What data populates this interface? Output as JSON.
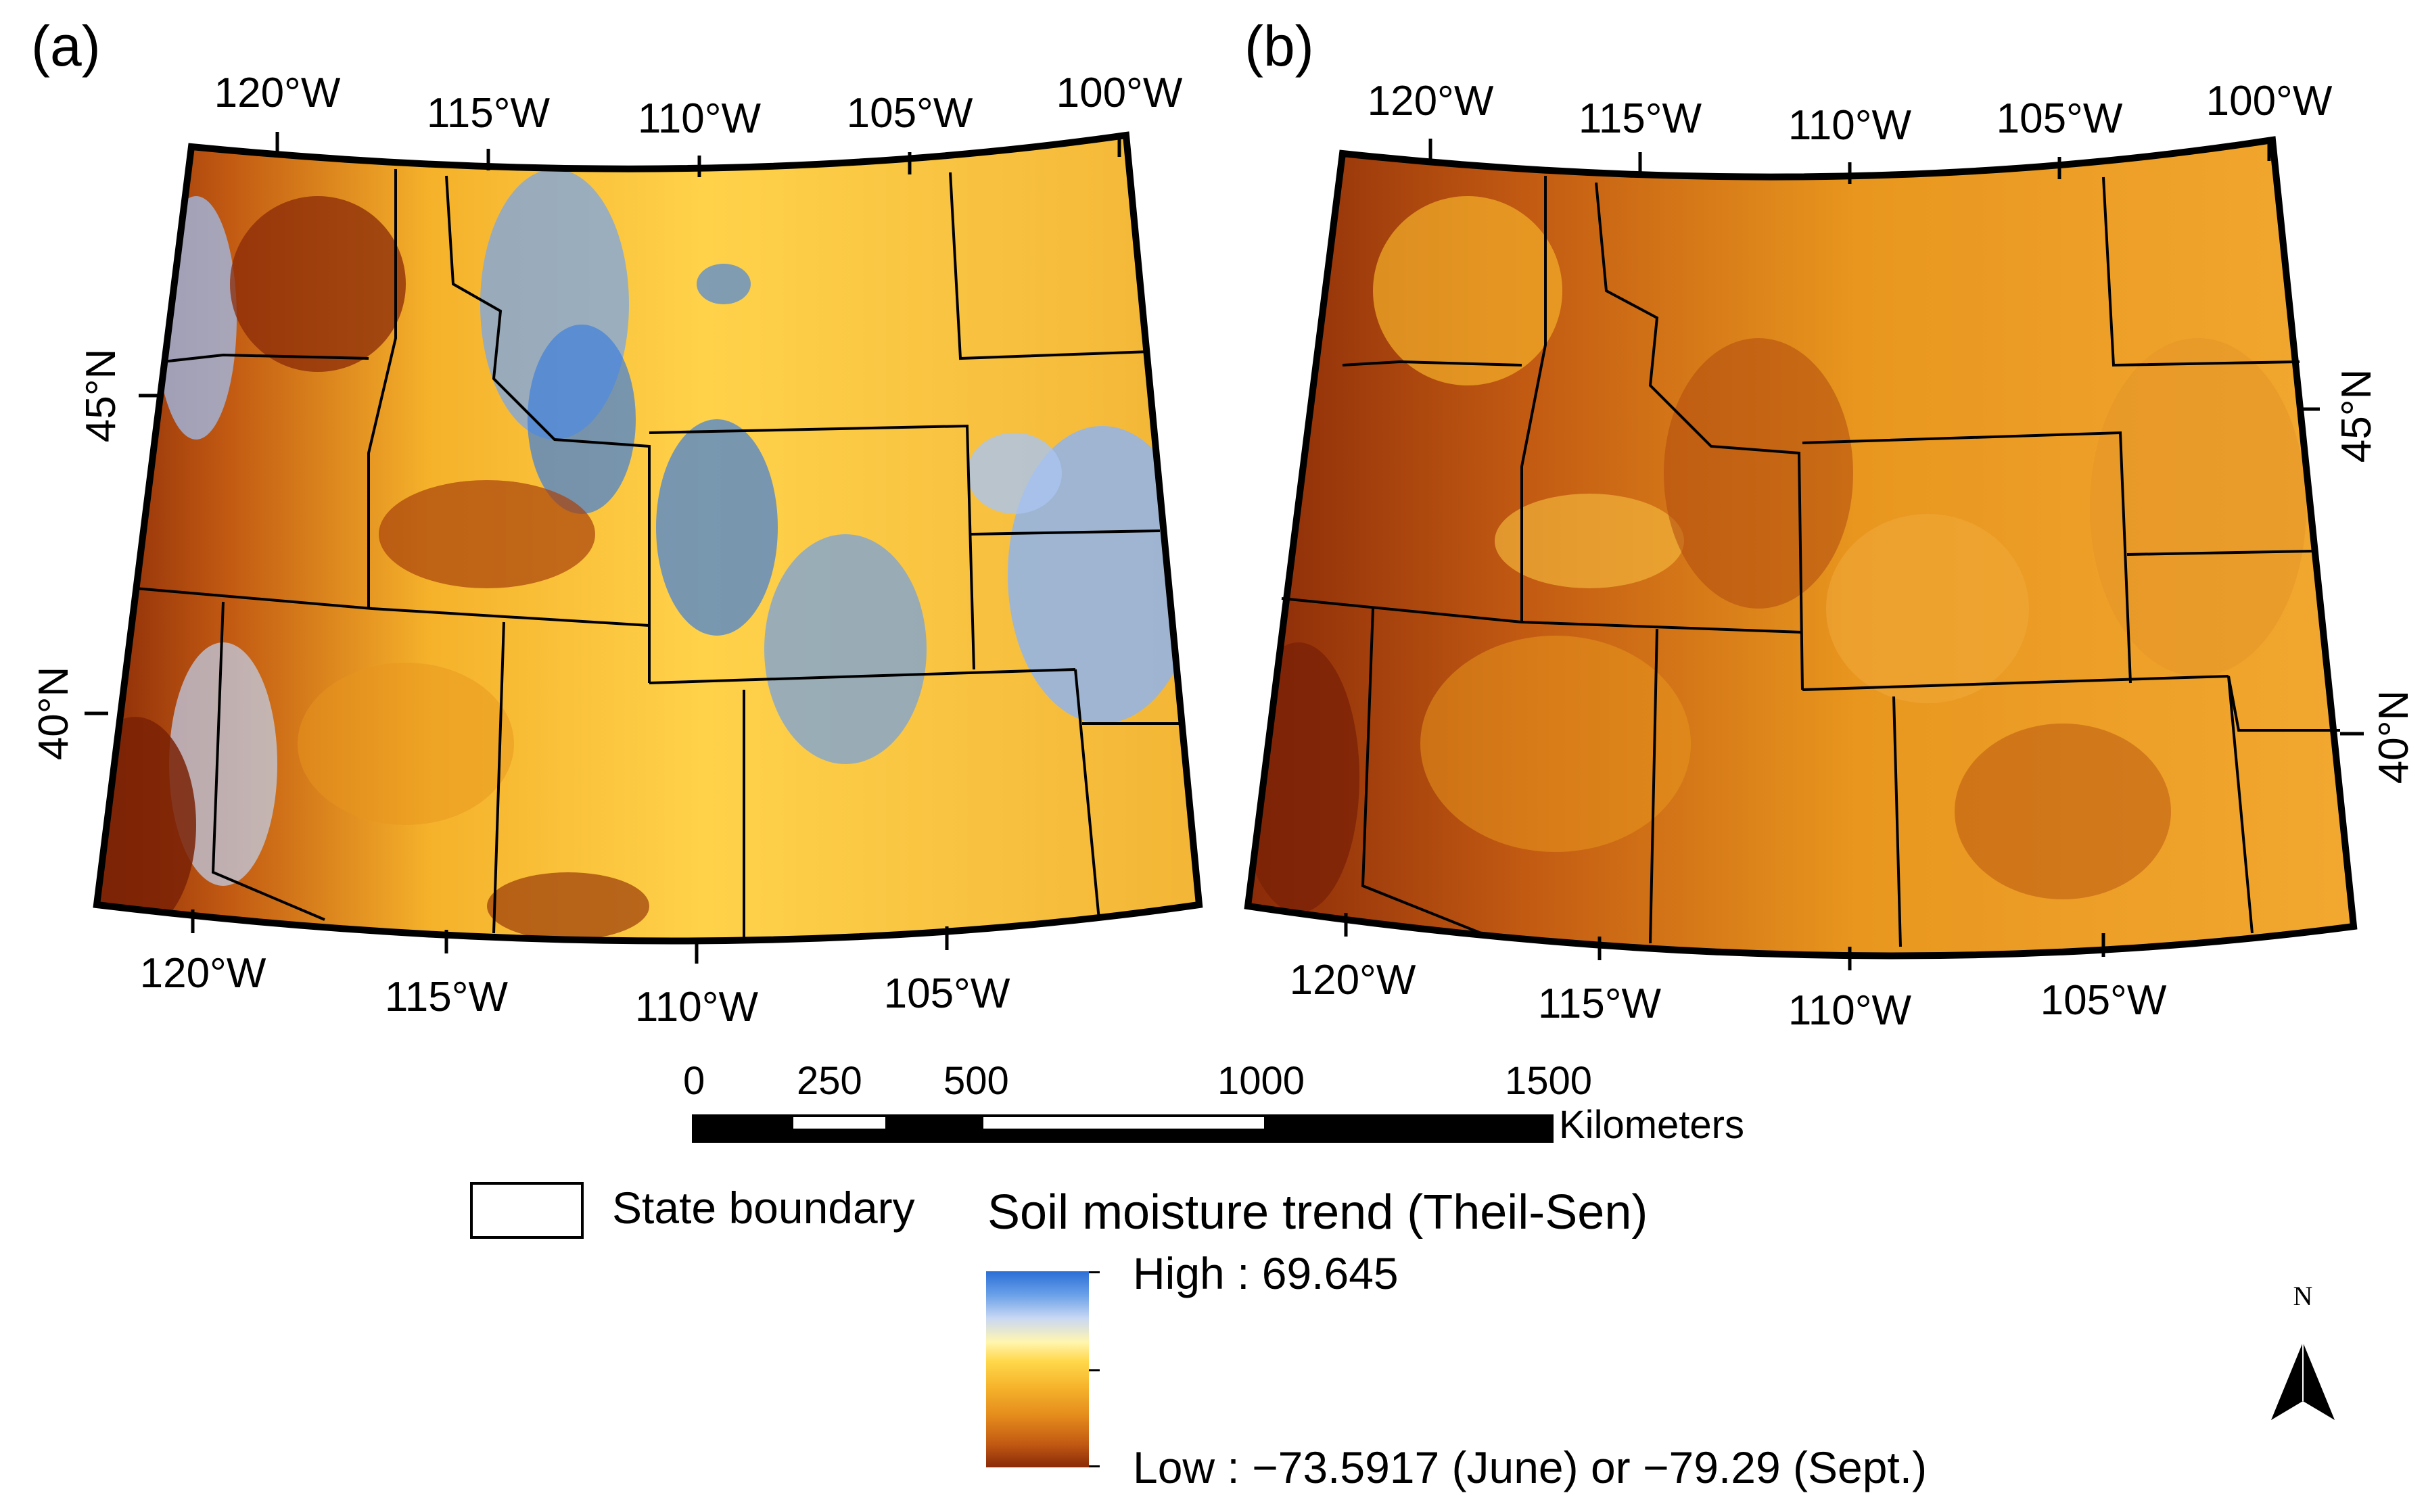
{
  "panels": [
    {
      "letter": "(a)",
      "top_labels": [
        "120°W",
        "115°W",
        "110°W",
        "105°W",
        "100°W"
      ],
      "bottom_labels": [
        "120°W",
        "115°W",
        "110°W",
        "105°W"
      ],
      "lat_labels": [
        "45°N",
        "40°N"
      ]
    },
    {
      "letter": "(b)",
      "top_labels": [
        "120°W",
        "115°W",
        "110°W",
        "105°W",
        "100°W"
      ],
      "bottom_labels": [
        "120°W",
        "115°W",
        "110°W",
        "105°W"
      ],
      "lat_labels": [
        "45°N",
        "40°N"
      ]
    }
  ],
  "scalebar": {
    "ticks": [
      "0",
      "250",
      "500",
      "1000",
      "1500"
    ],
    "unit": "Kilometers"
  },
  "legend": {
    "boundary_label": "State boundary",
    "title": "Soil moisture trend (Theil-Sen)",
    "high_label": "High : 69.645",
    "low_label": "Low : −73.5917 (June) or −79.29 (Sept.)"
  },
  "north_arrow": {
    "letter": "N"
  },
  "colors": {
    "high": "#2a6ed6",
    "mid": "#ffd84a",
    "low": "#8a2a08",
    "boundary": "#000000"
  }
}
